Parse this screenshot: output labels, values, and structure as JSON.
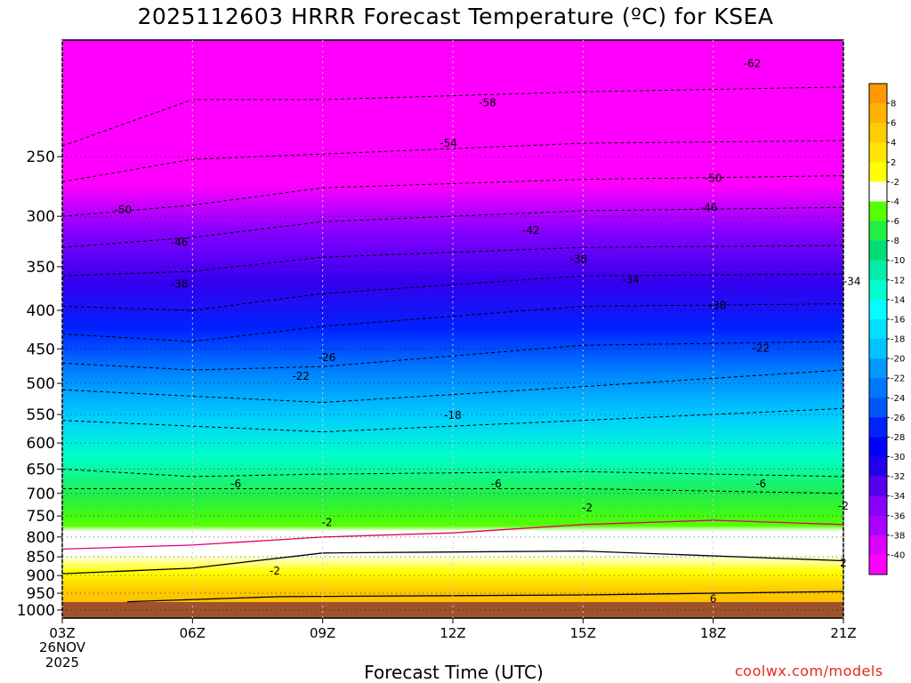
{
  "chart_data": {
    "type": "heatmap",
    "title": "2025112603 HRRR Forecast Temperature (ºC) for KSEA",
    "xlabel": "Forecast Time (UTC)",
    "date_line1": "26NOV",
    "date_line2": "2025",
    "credit": "coolwx.com/models",
    "x_ticks": [
      "03Z",
      "06Z",
      "09Z",
      "12Z",
      "15Z",
      "18Z",
      "21Z"
    ],
    "y_ticks": [
      250,
      300,
      350,
      400,
      450,
      500,
      550,
      600,
      650,
      700,
      750,
      800,
      850,
      900,
      950,
      1000
    ],
    "ylim": [
      175,
      1025
    ],
    "y_scale": "log",
    "grid": true,
    "colorbar": {
      "labels": [
        "8",
        "6",
        "4",
        "2",
        "-2",
        "-4",
        "-6",
        "-8",
        "-10",
        "-12",
        "-14",
        "-16",
        "-18",
        "-20",
        "-22",
        "-24",
        "-26",
        "-28",
        "-30",
        "-32",
        "-34",
        "-36",
        "-38",
        "-40"
      ],
      "colors": [
        "#ff9900",
        "#ffb300",
        "#ffcc00",
        "#ffe600",
        "#ffff00",
        "#ffffff",
        "#55ff00",
        "#22ee44",
        "#00dd77",
        "#00eeaa",
        "#00ffcc",
        "#00ffff",
        "#00e0ff",
        "#00c4ff",
        "#0099ff",
        "#0077ff",
        "#0055ff",
        "#0022ff",
        "#0000ff",
        "#2200ee",
        "#5500ee",
        "#8800ff",
        "#aa00ff",
        "#dd00ff",
        "#ff00ff"
      ]
    },
    "contour_labels": [
      {
        "text": "-62",
        "x": 15.9,
        "p": 188
      },
      {
        "text": "-58",
        "x": 9.8,
        "p": 212
      },
      {
        "text": "-54",
        "x": 8.9,
        "p": 240
      },
      {
        "text": "-50",
        "x": 15.0,
        "p": 267
      },
      {
        "text": "-50",
        "x": 1.4,
        "p": 294
      },
      {
        "text": "-46",
        "x": 14.9,
        "p": 292
      },
      {
        "text": "-46",
        "x": 2.7,
        "p": 325
      },
      {
        "text": "-42",
        "x": 10.8,
        "p": 313
      },
      {
        "text": "-38",
        "x": 11.9,
        "p": 342
      },
      {
        "text": "-38",
        "x": 2.7,
        "p": 369
      },
      {
        "text": "-34",
        "x": 13.1,
        "p": 364
      },
      {
        "text": "-34",
        "x": 18.2,
        "p": 366
      },
      {
        "text": "-30",
        "x": 15.1,
        "p": 394
      },
      {
        "text": "-26",
        "x": 6.1,
        "p": 462
      },
      {
        "text": "-22",
        "x": 16.1,
        "p": 449
      },
      {
        "text": "-22",
        "x": 5.5,
        "p": 489
      },
      {
        "text": "-18",
        "x": 9.0,
        "p": 551
      },
      {
        "text": "-6",
        "x": 4.0,
        "p": 680
      },
      {
        "text": "-6",
        "x": 10.0,
        "p": 680
      },
      {
        "text": "-6",
        "x": 16.1,
        "p": 680
      },
      {
        "text": "-2",
        "x": 12.1,
        "p": 732
      },
      {
        "text": "-2",
        "x": 18.0,
        "p": 728
      },
      {
        "text": "-2",
        "x": 6.1,
        "p": 765
      },
      {
        "text": "-2",
        "x": 4.9,
        "p": 887
      },
      {
        "text": "2",
        "x": 18.0,
        "p": 866
      },
      {
        "text": "6",
        "x": 15.0,
        "p": 967
      }
    ]
  }
}
